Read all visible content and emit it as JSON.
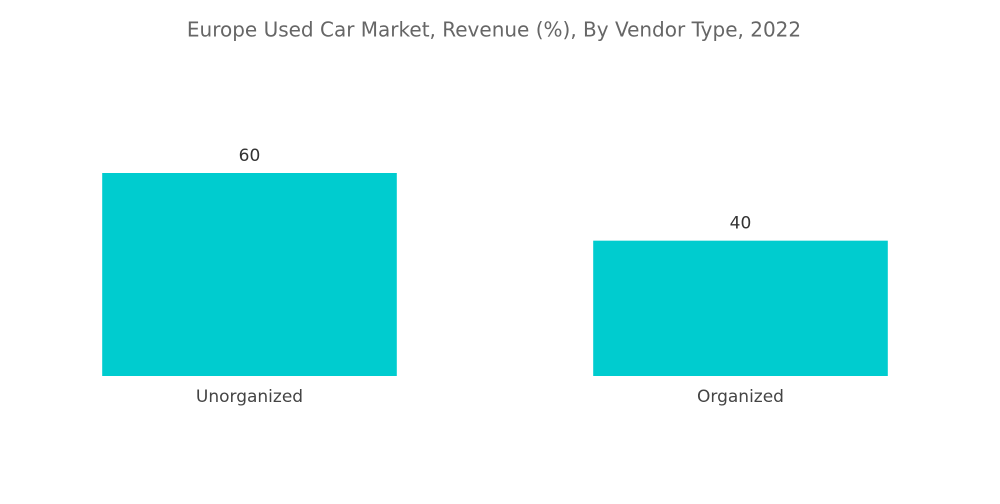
{
  "chart_data": {
    "type": "bar",
    "title": "Europe Used Car Market, Revenue (%), By Vendor Type, 2022",
    "categories": [
      "Unorganized",
      "Organized"
    ],
    "values": [
      60,
      40
    ],
    "color": "#00cccf"
  }
}
